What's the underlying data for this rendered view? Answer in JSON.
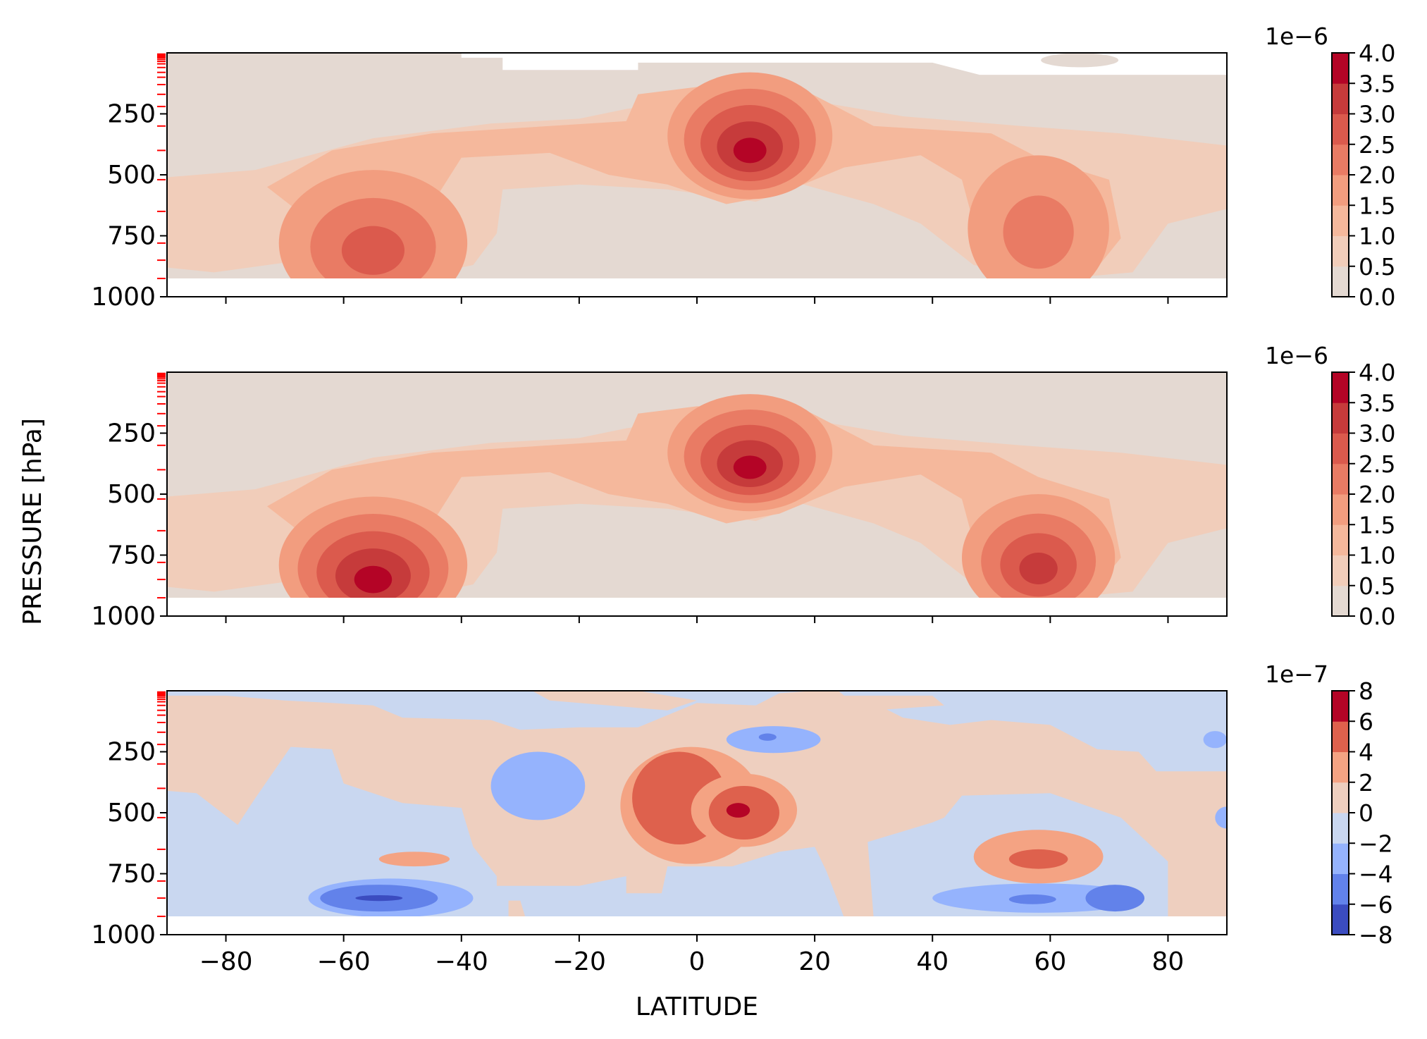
{
  "figure": {
    "ylabel": "PRESSURE [hPa]",
    "xlabel": "LATITUDE"
  },
  "chart_data": [
    {
      "type": "heatmap",
      "panel": "top",
      "x_range": [
        -90,
        90
      ],
      "y_range": [
        1000,
        0
      ],
      "y_ticks": [
        250,
        500,
        750,
        1000
      ],
      "y_tick_labels": [
        "250",
        "500",
        "750",
        "1000"
      ],
      "x_ticks": [
        -80,
        -60,
        -40,
        -20,
        0,
        20,
        40,
        60,
        80
      ],
      "data_extent_pressure": [
        0,
        925
      ],
      "model_levels_marked": true,
      "colormap": "coolwarm",
      "colorbar": {
        "exponent": "1e−6",
        "levels": [
          0.0,
          0.5,
          1.0,
          1.5,
          2.0,
          2.5,
          3.0,
          3.5,
          4.0
        ],
        "tick_labels": [
          "0.0",
          "0.5",
          "1.0",
          "1.5",
          "2.0",
          "2.5",
          "3.0",
          "3.5",
          "4.0"
        ],
        "colors": [
          "#e4d9d2",
          "#f1cdba",
          "#f5b89c",
          "#f29d7f",
          "#e97b64",
          "#db5a4d",
          "#c63b3b",
          "#b40426"
        ]
      },
      "features": [
        {
          "kind": "max",
          "lat": -55,
          "p": 820,
          "value": 2.7
        },
        {
          "kind": "max",
          "lat": 9,
          "p": 290,
          "value": 3.3
        },
        {
          "kind": "max",
          "lat": 58,
          "p": 700,
          "value": 2.2
        }
      ]
    },
    {
      "type": "heatmap",
      "panel": "middle",
      "x_range": [
        -90,
        90
      ],
      "y_range": [
        1000,
        0
      ],
      "y_ticks": [
        250,
        500,
        750,
        1000
      ],
      "y_tick_labels": [
        "250",
        "500",
        "750",
        "1000"
      ],
      "x_ticks": [
        -80,
        -60,
        -40,
        -20,
        0,
        20,
        40,
        60,
        80
      ],
      "data_extent_pressure": [
        0,
        925
      ],
      "model_levels_marked": true,
      "colormap": "coolwarm",
      "colorbar": {
        "exponent": "1e−6",
        "levels": [
          0.0,
          0.5,
          1.0,
          1.5,
          2.0,
          2.5,
          3.0,
          3.5,
          4.0
        ],
        "tick_labels": [
          "0.0",
          "0.5",
          "1.0",
          "1.5",
          "2.0",
          "2.5",
          "3.0",
          "3.5",
          "4.0"
        ],
        "colors": [
          "#e4d9d2",
          "#f1cdba",
          "#f5b89c",
          "#f29d7f",
          "#e97b64",
          "#db5a4d",
          "#c63b3b",
          "#b40426"
        ]
      },
      "features": [
        {
          "kind": "max",
          "lat": -55,
          "p": 830,
          "value": 3.2
        },
        {
          "kind": "max",
          "lat": 9,
          "p": 260,
          "value": 3.7
        },
        {
          "kind": "max",
          "lat": 58,
          "p": 830,
          "value": 2.8
        }
      ]
    },
    {
      "type": "heatmap",
      "panel": "bottom",
      "x_range": [
        -90,
        90
      ],
      "y_range": [
        1000,
        0
      ],
      "y_ticks": [
        250,
        500,
        750,
        1000
      ],
      "y_tick_labels": [
        "250",
        "500",
        "750",
        "1000"
      ],
      "x_ticks": [
        -80,
        -60,
        -40,
        -20,
        0,
        20,
        40,
        60,
        80
      ],
      "x_tick_labels": [
        "−80",
        "−60",
        "−40",
        "−20",
        "0",
        "20",
        "40",
        "60",
        "80"
      ],
      "data_extent_pressure": [
        0,
        925
      ],
      "model_levels_marked": true,
      "colormap": "coolwarm",
      "colorbar": {
        "exponent": "1e−7",
        "levels": [
          -8,
          -6,
          -4,
          -2,
          0,
          2,
          4,
          6,
          8
        ],
        "tick_labels": [
          "−8",
          "−6",
          "−4",
          "−2",
          "0",
          "2",
          "4",
          "6",
          "8"
        ],
        "colors": [
          "#3b4cc0",
          "#6282ea",
          "#95b3fd",
          "#c9d7f0",
          "#eecfbf",
          "#f4a383",
          "#de614d",
          "#b40426"
        ]
      },
      "features": [
        {
          "kind": "max",
          "lat": -3,
          "p": 450,
          "value": 5.0
        },
        {
          "kind": "max",
          "lat": 7,
          "p": 490,
          "value": 7.0
        },
        {
          "kind": "max",
          "lat": 58,
          "p": 680,
          "value": 5.0
        },
        {
          "kind": "min",
          "lat": -55,
          "p": 850,
          "value": -7.0
        },
        {
          "kind": "min",
          "lat": -27,
          "p": 390,
          "value": -3.0
        },
        {
          "kind": "min",
          "lat": 12,
          "p": 200,
          "value": -3.0
        },
        {
          "kind": "min",
          "lat": 57,
          "p": 850,
          "value": -6.0
        },
        {
          "kind": "min",
          "lat": 71,
          "p": 850,
          "value": -6.0
        }
      ]
    }
  ]
}
